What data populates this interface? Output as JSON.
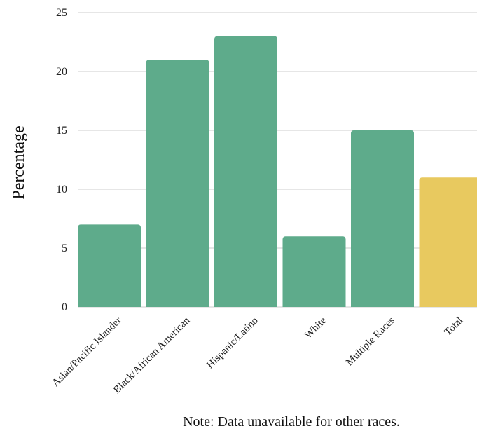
{
  "chart_data": {
    "type": "bar",
    "title": "",
    "xlabel": "",
    "ylabel": "Percentage",
    "categories": [
      "Asian/Pacific Islander",
      "Black/African American",
      "Hispanic/Latino",
      "White",
      "Multiple Races",
      "Total"
    ],
    "values": [
      7,
      21,
      23,
      6,
      15,
      11
    ],
    "yticks": [
      "0",
      "5",
      "10",
      "15",
      "20",
      "25"
    ],
    "ylim": [
      0,
      25
    ],
    "grid": true,
    "bar_color": "#5eab8b",
    "highlight_color": "#e8c95f",
    "highlight_category": "Total",
    "note": "Note: Data unavailable for other races."
  }
}
